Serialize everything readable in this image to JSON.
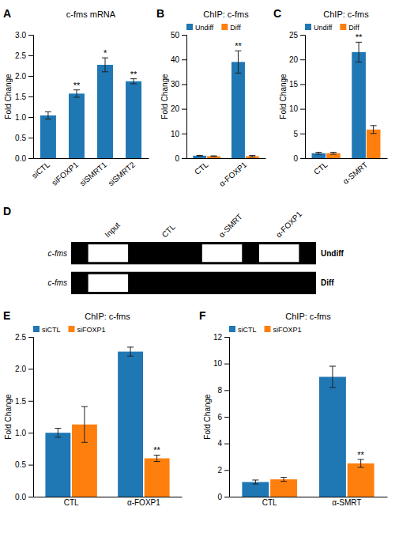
{
  "chart_data": [
    {
      "type": "bar",
      "title": "c-fms mRNA",
      "ylabel": "Fold Change",
      "categories": [
        "siCTL",
        "siFOXP1",
        "siSMRT1",
        "siSMRT2"
      ],
      "values": [
        1.04,
        1.57,
        2.27,
        1.87
      ],
      "errors": [
        0.09,
        0.09,
        0.17,
        0.06
      ],
      "significance": [
        null,
        "**",
        "*",
        "**"
      ],
      "ylim": [
        0,
        3.0
      ],
      "yticks": [
        {
          "value": 0,
          "label": "0.0"
        },
        0.5,
        {
          "value": 1.0,
          "label": "1.0"
        },
        1.5,
        {
          "value": 2.0,
          "label": "2.0"
        },
        2.5,
        {
          "value": 3.0,
          "label": "3.0"
        }
      ],
      "annotations": [
        "A"
      ]
    },
    {
      "type": "bar",
      "title": "ChIP: c-fms",
      "ylabel": "Fold Change",
      "categories": [
        "CTL",
        "α-FOXP1"
      ],
      "series": [
        {
          "name": "Undiff",
          "values": [
            1.0,
            39.0
          ],
          "errors": [
            0.15,
            4.5
          ],
          "significance": [
            null,
            "**"
          ]
        },
        {
          "name": "Diff",
          "values": [
            0.8,
            0.8
          ],
          "errors": [
            0.15,
            0.3
          ]
        }
      ],
      "ylim": [
        0,
        50
      ],
      "yticks": [
        0,
        10,
        20,
        30,
        40,
        50
      ],
      "legend": "upper left",
      "annotations": [
        "B"
      ]
    },
    {
      "type": "bar",
      "title": "ChIP: c-fms",
      "ylabel": "Fold Change",
      "categories": [
        "CTL",
        "α-SMRT"
      ],
      "series": [
        {
          "name": "Undiff",
          "values": [
            1.0,
            21.5
          ],
          "errors": [
            0.2,
            2.0
          ],
          "significance": [
            null,
            "**"
          ]
        },
        {
          "name": "Diff",
          "values": [
            1.0,
            5.8
          ],
          "errors": [
            0.2,
            0.8
          ]
        }
      ],
      "ylim": [
        0,
        25
      ],
      "yticks": [
        0,
        5,
        10,
        15,
        20,
        25
      ],
      "legend": "upper left",
      "annotations": [
        "C"
      ]
    },
    {
      "type": "gel",
      "ylabel": "c-fms",
      "categories": [
        "Input",
        "CTL",
        "α-SMRT",
        "α-FOXP1"
      ],
      "series": [
        {
          "name": "Undiff",
          "bands": [
            0,
            2,
            3
          ]
        },
        {
          "name": "Diff",
          "bands": [
            0
          ]
        }
      ],
      "annotations": [
        "D"
      ]
    },
    {
      "type": "bar",
      "title": "ChIP: c-fms",
      "ylabel": "Fold Change",
      "categories": [
        "CTL",
        "α-FOXP1"
      ],
      "series": [
        {
          "name": "siCTL",
          "values": [
            1.0,
            2.27
          ],
          "errors": [
            0.07,
            0.07
          ]
        },
        {
          "name": "siFOXP1",
          "values": [
            1.13,
            0.6
          ],
          "errors": [
            0.28,
            0.05
          ],
          "significance": [
            null,
            "**"
          ]
        }
      ],
      "ylim": [
        0,
        2.5
      ],
      "yticks": [
        {
          "value": 0,
          "label": "0.0"
        },
        0.5,
        {
          "value": 1.0,
          "label": "1.0"
        },
        1.5,
        {
          "value": 2.0,
          "label": "2.0"
        },
        2.5
      ],
      "legend": "upper left",
      "annotations": [
        "E"
      ]
    },
    {
      "type": "bar",
      "title": "ChIP: c-fms",
      "ylabel": "Fold Change",
      "categories": [
        "CTL",
        "α-SMRT"
      ],
      "series": [
        {
          "name": "siCTL",
          "values": [
            1.1,
            9.0
          ],
          "errors": [
            0.15,
            0.8
          ]
        },
        {
          "name": "siFOXP1",
          "values": [
            1.3,
            2.5
          ],
          "errors": [
            0.15,
            0.3
          ],
          "significance": [
            null,
            "**"
          ]
        }
      ],
      "ylim": [
        0,
        12
      ],
      "yticks": [
        0,
        2,
        4,
        6,
        8,
        10,
        12
      ],
      "legend": "upper left",
      "annotations": [
        "F"
      ]
    }
  ]
}
